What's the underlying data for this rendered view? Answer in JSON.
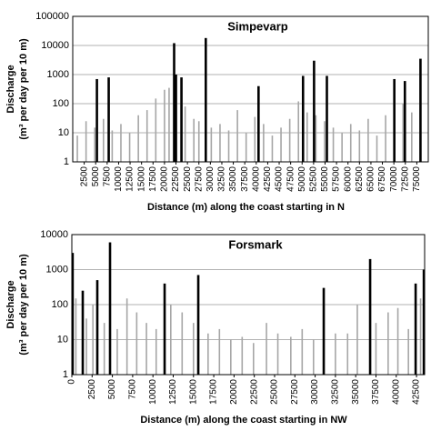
{
  "chart_data": [
    {
      "type": "bar",
      "title": "Simpevarp",
      "xlabel": "Distance (m) along the coast starting in N",
      "ylabel": [
        "Discharge",
        "(m³ per day per 10 m)"
      ],
      "log_scale": true,
      "grid": true,
      "xlim": [
        0,
        77500
      ],
      "ylim": [
        1,
        100000
      ],
      "xticks": [
        2500,
        5000,
        7500,
        10000,
        12500,
        15000,
        17500,
        20000,
        22500,
        25000,
        27500,
        30000,
        32500,
        35000,
        37500,
        40000,
        42500,
        45000,
        47500,
        50000,
        52500,
        55000,
        57500,
        60000,
        62500,
        65000,
        67500,
        70000,
        72500,
        75000
      ],
      "yticks": [
        1,
        10,
        100,
        1000,
        10000,
        100000
      ],
      "series": [
        {
          "color": "#a6a6a6",
          "x": [
            1000,
            2900,
            4800,
            6700,
            8600,
            10500,
            12400,
            14300,
            16200,
            18100,
            20000,
            21000,
            24500,
            26400,
            27500,
            30200,
            32100,
            34000,
            35900,
            37800,
            39700,
            41600,
            43500,
            45400,
            47300,
            49200,
            51100,
            53000,
            54900,
            56800,
            58700,
            60600,
            62500,
            64400,
            66300,
            68200,
            70100,
            72000,
            73900,
            75800
          ],
          "values": [
            8,
            25,
            15,
            30,
            12,
            20,
            10,
            40,
            60,
            150,
            300,
            350,
            80,
            30,
            25,
            15,
            20,
            12,
            60,
            10,
            35,
            20,
            8,
            15,
            30,
            120,
            50,
            40,
            25,
            15,
            10,
            20,
            12,
            30,
            8,
            40,
            60,
            100,
            50,
            30
          ]
        },
        {
          "color": "#000000",
          "x": [
            5270,
            7840,
            22100,
            22500,
            23700,
            29000,
            40500,
            50200,
            52600,
            55400,
            70100,
            72400,
            75800
          ],
          "values": [
            700,
            800,
            12000,
            1000,
            800,
            18000,
            400,
            900,
            3000,
            900,
            700,
            600,
            3500
          ]
        }
      ]
    },
    {
      "type": "bar",
      "title": "Forsmark",
      "xlabel": "Distance (m) along the coast starting in NW",
      "ylabel": [
        "Discharge",
        "(m³ per day per 10 m)"
      ],
      "log_scale": true,
      "grid": true,
      "xlim": [
        0,
        43500
      ],
      "ylim": [
        1,
        10000
      ],
      "xticks": [
        0,
        2500,
        5000,
        7500,
        10000,
        12500,
        15000,
        17500,
        20000,
        22500,
        25000,
        27500,
        30000,
        32500,
        35000,
        37500,
        40000,
        42500
      ],
      "yticks": [
        1,
        10,
        100,
        1000,
        10000
      ],
      "series": [
        {
          "color": "#a6a6a6",
          "x": [
            500,
            1800,
            2600,
            4000,
            5600,
            6800,
            8000,
            9200,
            10400,
            12200,
            13600,
            15000,
            16800,
            18200,
            19600,
            21000,
            22400,
            24000,
            25400,
            27000,
            28400,
            29800,
            32500,
            34000,
            35200,
            37500,
            39000,
            40200,
            41500,
            43000
          ],
          "values": [
            150,
            40,
            100,
            30,
            20,
            150,
            60,
            30,
            20,
            100,
            60,
            30,
            15,
            20,
            10,
            12,
            8,
            30,
            15,
            12,
            20,
            10,
            15,
            15,
            100,
            30,
            60,
            80,
            20,
            150
          ]
        },
        {
          "color": "#000000",
          "x": [
            100,
            1346,
            3140,
            4710,
            11440,
            15590,
            31060,
            36780,
            42390,
            43400
          ],
          "values": [
            3000,
            250,
            500,
            6000,
            400,
            700,
            300,
            2000,
            400,
            1000
          ]
        }
      ]
    }
  ]
}
